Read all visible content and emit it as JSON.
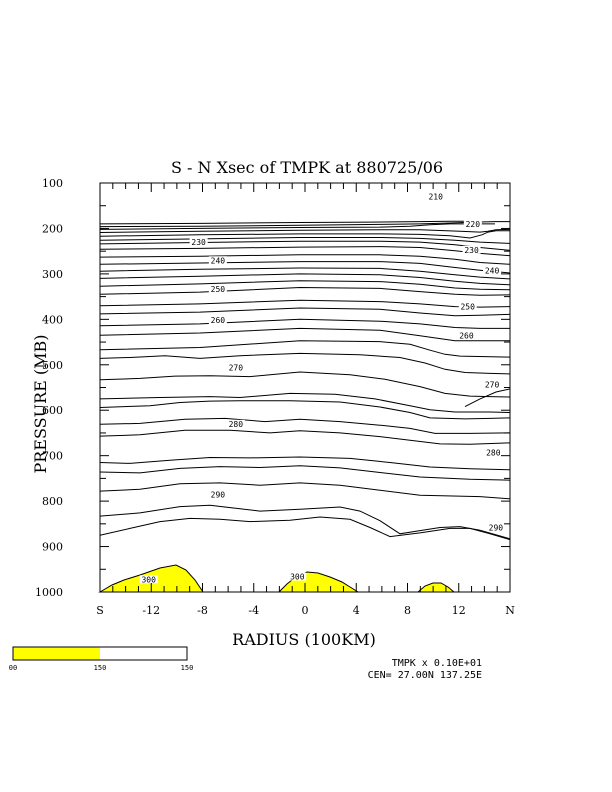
{
  "chart_data": {
    "type": "contour",
    "title": "S - N Xsec of TMPK at 880725/06",
    "xlabel": "RADIUS (100KM)",
    "ylabel": "PRESSURE (MB)",
    "x_ticks": [
      "S",
      "-12",
      "-8",
      "-4",
      "0",
      "4",
      "8",
      "12",
      "N"
    ],
    "y_ticks": [
      "100",
      "200",
      "300",
      "400",
      "500",
      "600",
      "700",
      "800",
      "900",
      "1000"
    ],
    "xlim": [
      -16,
      16
    ],
    "ylim": [
      100,
      1000
    ],
    "contour_labels": [
      {
        "text": "210",
        "x": 10.2,
        "y": 130
      },
      {
        "text": "220",
        "x": 13.1,
        "y": 190
      },
      {
        "text": "230",
        "x": -8.3,
        "y": 230
      },
      {
        "text": "230",
        "x": 13.0,
        "y": 247
      },
      {
        "text": "240",
        "x": -6.8,
        "y": 270
      },
      {
        "text": "240",
        "x": 14.6,
        "y": 292
      },
      {
        "text": "250",
        "x": -6.8,
        "y": 333
      },
      {
        "text": "250",
        "x": 12.7,
        "y": 372
      },
      {
        "text": "260",
        "x": -6.8,
        "y": 402
      },
      {
        "text": "260",
        "x": 12.6,
        "y": 436
      },
      {
        "text": "270",
        "x": -5.4,
        "y": 506
      },
      {
        "text": "270",
        "x": 14.6,
        "y": 543
      },
      {
        "text": "280",
        "x": -5.4,
        "y": 630
      },
      {
        "text": "280",
        "x": 14.7,
        "y": 693
      },
      {
        "text": "290",
        "x": -6.8,
        "y": 786
      },
      {
        "text": "290",
        "x": 14.9,
        "y": 858
      },
      {
        "text": "300",
        "x": -12.2,
        "y": 972
      },
      {
        "text": "300",
        "x": -0.6,
        "y": 966
      }
    ],
    "shading": {
      "color": "#ffff00",
      "threshold": 300
    },
    "legend_bar": {
      "ticks": [
        "00",
        "150",
        "150"
      ],
      "fill_fraction": 0.5,
      "colors": [
        "#ffff00",
        "#ffffff"
      ]
    },
    "footer": {
      "line1": "TMPK x  0.10E+01",
      "line2": "CEN= 27.00N  137.25E"
    }
  }
}
